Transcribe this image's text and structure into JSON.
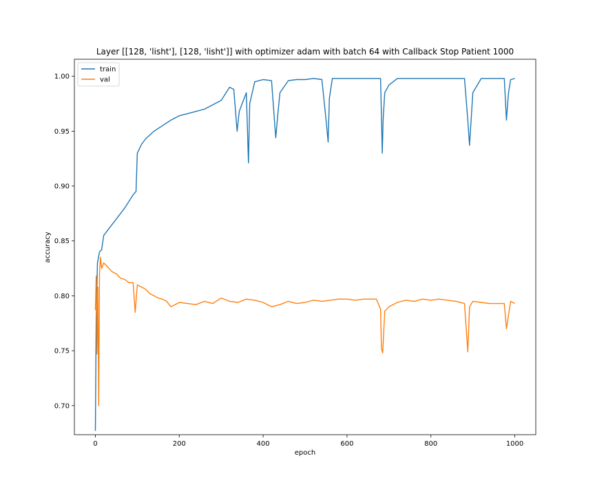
{
  "chart_data": {
    "type": "line",
    "title": "Layer [[128, 'lisht'], [128, 'lisht']] with optimizer adam with batch 64 with Callback Stop Patient 1000",
    "xlabel": "epoch",
    "ylabel": "accuracy",
    "xlim": [
      -50,
      1050
    ],
    "ylim": [
      0.6735,
      1.0155
    ],
    "x_ticks": [
      0,
      200,
      400,
      600,
      800,
      1000
    ],
    "y_ticks": [
      0.7,
      0.75,
      0.8,
      0.85,
      0.9,
      0.95,
      1.0
    ],
    "x_tick_labels": [
      "0",
      "200",
      "400",
      "600",
      "800",
      "1000"
    ],
    "y_tick_labels": [
      "0.70",
      "0.75",
      "0.80",
      "0.85",
      "0.90",
      "0.95",
      "1.00"
    ],
    "legend_position": "top-left",
    "grid": false,
    "series": [
      {
        "name": "train",
        "color": "#1f77b4",
        "x": [
          0,
          2,
          5,
          10,
          15,
          20,
          30,
          40,
          50,
          60,
          70,
          80,
          90,
          97,
          100,
          110,
          120,
          140,
          160,
          180,
          200,
          220,
          240,
          260,
          280,
          300,
          320,
          330,
          338,
          343,
          350,
          360,
          365,
          368,
          380,
          400,
          420,
          430,
          435,
          440,
          460,
          480,
          500,
          520,
          540,
          550,
          555,
          558,
          565,
          580,
          600,
          620,
          640,
          660,
          680,
          684,
          686,
          690,
          700,
          720,
          740,
          760,
          780,
          800,
          820,
          840,
          860,
          880,
          888,
          892,
          900,
          920,
          940,
          960,
          975,
          980,
          985,
          990,
          1000
        ],
        "y": [
          0.677,
          0.78,
          0.83,
          0.84,
          0.842,
          0.855,
          0.86,
          0.865,
          0.87,
          0.875,
          0.88,
          0.886,
          0.892,
          0.895,
          0.93,
          0.938,
          0.943,
          0.95,
          0.955,
          0.96,
          0.964,
          0.966,
          0.968,
          0.97,
          0.974,
          0.978,
          0.99,
          0.988,
          0.95,
          0.968,
          0.975,
          0.985,
          0.921,
          0.975,
          0.995,
          0.997,
          0.996,
          0.944,
          0.965,
          0.985,
          0.996,
          0.997,
          0.997,
          0.998,
          0.997,
          0.96,
          0.94,
          0.98,
          0.998,
          0.998,
          0.998,
          0.998,
          0.998,
          0.998,
          0.998,
          0.93,
          0.96,
          0.985,
          0.992,
          0.998,
          0.998,
          0.998,
          0.998,
          0.998,
          0.998,
          0.998,
          0.998,
          0.998,
          0.96,
          0.937,
          0.985,
          0.998,
          0.998,
          0.998,
          0.998,
          0.96,
          0.985,
          0.997,
          0.998
        ]
      },
      {
        "name": "val",
        "color": "#ff7f0e",
        "x": [
          0,
          2,
          4,
          6,
          8,
          10,
          12,
          15,
          20,
          30,
          40,
          50,
          60,
          70,
          80,
          90,
          95,
          100,
          110,
          120,
          130,
          140,
          150,
          160,
          170,
          180,
          190,
          200,
          220,
          240,
          260,
          280,
          300,
          320,
          340,
          360,
          380,
          400,
          420,
          440,
          460,
          480,
          500,
          520,
          540,
          560,
          580,
          600,
          620,
          640,
          660,
          670,
          680,
          682,
          685,
          690,
          700,
          720,
          740,
          760,
          780,
          800,
          820,
          840,
          860,
          880,
          888,
          892,
          900,
          920,
          940,
          960,
          975,
          980,
          990,
          1000
        ],
        "y": [
          0.787,
          0.818,
          0.747,
          0.808,
          0.7,
          0.82,
          0.835,
          0.825,
          0.83,
          0.826,
          0.822,
          0.82,
          0.816,
          0.815,
          0.812,
          0.812,
          0.785,
          0.81,
          0.808,
          0.806,
          0.802,
          0.8,
          0.798,
          0.797,
          0.795,
          0.79,
          0.792,
          0.794,
          0.793,
          0.792,
          0.795,
          0.793,
          0.798,
          0.795,
          0.794,
          0.797,
          0.796,
          0.794,
          0.79,
          0.792,
          0.795,
          0.793,
          0.794,
          0.796,
          0.795,
          0.796,
          0.797,
          0.797,
          0.796,
          0.797,
          0.797,
          0.797,
          0.788,
          0.752,
          0.748,
          0.786,
          0.79,
          0.794,
          0.796,
          0.795,
          0.797,
          0.796,
          0.797,
          0.796,
          0.795,
          0.793,
          0.749,
          0.79,
          0.795,
          0.794,
          0.793,
          0.793,
          0.793,
          0.77,
          0.795,
          0.793
        ]
      }
    ]
  }
}
